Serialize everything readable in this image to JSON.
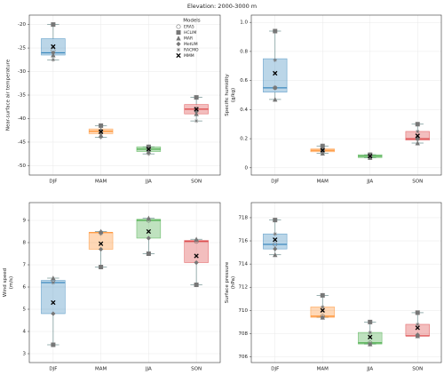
{
  "title": "Elevation: 2000-3000 m",
  "chart_data": [
    {
      "type": "box",
      "ylabel": [
        "Near-surface air temperature"
      ],
      "categories": [
        "DJF",
        "MAM",
        "JJA",
        "SON"
      ],
      "colors": [
        "#1f77b4",
        "#ff7f0e",
        "#2ca02c",
        "#d62728"
      ],
      "ylim": [
        -52,
        -18
      ],
      "yticks": [
        -20,
        -25,
        -30,
        -35,
        -40,
        -45,
        -50
      ],
      "grid": true,
      "boxes": [
        {
          "q1": -26.5,
          "median": -26,
          "q3": -23,
          "whislo": -27.5,
          "whishi": -20
        },
        {
          "q1": -43.2,
          "median": -42.7,
          "q3": -42.2,
          "whislo": -44,
          "whishi": -41.5
        },
        {
          "q1": -47,
          "median": -46.5,
          "q3": -46,
          "whislo": -47.5,
          "whishi": -46
        },
        {
          "q1": -39,
          "median": -38,
          "q3": -37,
          "whislo": -40.5,
          "whishi": -35.5
        }
      ],
      "legend_title": "Models",
      "legend": "upper right",
      "series": [
        {
          "name": "ERA5",
          "marker": "circle",
          "color": "#777777",
          "values": [
            -25.5,
            -42.8,
            -46.5,
            -38
          ]
        },
        {
          "name": "HCLIM",
          "marker": "square",
          "color": "#777777",
          "values": [
            -20,
            -41.5,
            -46,
            -35.5
          ]
        },
        {
          "name": "MAR",
          "marker": "triangle",
          "color": "#777777",
          "values": [
            -26.5,
            -43.5,
            -47,
            -39
          ]
        },
        {
          "name": "MetUM",
          "marker": "diamond",
          "color": "#777777",
          "values": [
            -26,
            -42.5,
            -46,
            -38.5
          ]
        },
        {
          "name": "RACMO",
          "marker": "star",
          "color": "#777777",
          "values": [
            -27.5,
            -44,
            -47.5,
            -40.5
          ]
        },
        {
          "name": "MMM",
          "marker": "x",
          "color": "#000000",
          "values": [
            -24.7,
            -42.8,
            -46.5,
            -38
          ]
        }
      ]
    },
    {
      "type": "box",
      "ylabel": [
        "Specific humidity",
        "(g/kg)"
      ],
      "categories": [
        "DJF",
        "MAM",
        "JJA",
        "SON"
      ],
      "colors": [
        "#1f77b4",
        "#ff7f0e",
        "#2ca02c",
        "#d62728"
      ],
      "ylim": [
        -0.05,
        1.05
      ],
      "yticks": [
        0,
        0.2,
        0.4,
        0.6,
        0.8,
        {
          "value": 1,
          "label": "1.0"
        }
      ],
      "grid": true,
      "boxes": [
        {
          "q1": 0.52,
          "median": 0.55,
          "q3": 0.75,
          "whislo": 0.47,
          "whishi": 0.94
        },
        {
          "q1": 0.11,
          "median": 0.12,
          "q3": 0.13,
          "whislo": 0.1,
          "whishi": 0.15
        },
        {
          "q1": 0.07,
          "median": 0.08,
          "q3": 0.09,
          "whislo": 0.07,
          "whishi": 0.09
        },
        {
          "q1": 0.19,
          "median": 0.2,
          "q3": 0.25,
          "whislo": 0.17,
          "whishi": 0.3
        }
      ],
      "series": [
        {
          "marker": "circle",
          "color": "#777777",
          "values": [
            0.55,
            0.12,
            0.08,
            0.2
          ]
        },
        {
          "marker": "square",
          "color": "#777777",
          "values": [
            0.94,
            0.15,
            0.09,
            0.3
          ]
        },
        {
          "marker": "triangle",
          "color": "#777777",
          "values": [
            0.47,
            0.1,
            0.07,
            0.17
          ]
        },
        {
          "marker": "diamond",
          "color": "#777777",
          "values": [
            0.55,
            0.12,
            0.08,
            0.2
          ]
        },
        {
          "marker": "star",
          "color": "#777777",
          "values": [
            0.74,
            0.13,
            0.09,
            0.25
          ]
        },
        {
          "marker": "x",
          "color": "#000000",
          "values": [
            0.65,
            0.12,
            0.08,
            0.22
          ]
        }
      ]
    },
    {
      "type": "box",
      "ylabel": [
        "Wind speed",
        "(m/s)"
      ],
      "categories": [
        "DJF",
        "MAM",
        "JJA",
        "SON"
      ],
      "colors": [
        "#1f77b4",
        "#ff7f0e",
        "#2ca02c",
        "#d62728"
      ],
      "ylim": [
        2.6,
        9.8
      ],
      "yticks": [
        3,
        4,
        5,
        6,
        7,
        8,
        9
      ],
      "grid": true,
      "boxes": [
        {
          "q1": 4.8,
          "median": 6.2,
          "q3": 6.3,
          "whislo": 3.4,
          "whishi": 6.4
        },
        {
          "q1": 7.7,
          "median": 8.45,
          "q3": 8.45,
          "whislo": 6.9,
          "whishi": 8.5
        },
        {
          "q1": 8.2,
          "median": 9.0,
          "q3": 9.05,
          "whislo": 7.5,
          "whishi": 9.1
        },
        {
          "q1": 7.1,
          "median": 8.05,
          "q3": 8.1,
          "whislo": 6.1,
          "whishi": 8.15
        }
      ],
      "series": [
        {
          "marker": "circle",
          "color": "#777777",
          "values": [
            6.3,
            8.45,
            9.0,
            8.05
          ]
        },
        {
          "marker": "square",
          "color": "#777777",
          "values": [
            3.4,
            6.9,
            7.5,
            6.1
          ]
        },
        {
          "marker": "triangle",
          "color": "#777777",
          "values": [
            6.4,
            8.5,
            9.1,
            8.15
          ]
        },
        {
          "marker": "diamond",
          "color": "#777777",
          "values": [
            4.8,
            7.7,
            8.2,
            7.1
          ]
        },
        {
          "marker": "star",
          "color": "#777777",
          "values": [
            6.2,
            8.4,
            9.05,
            8.1
          ]
        },
        {
          "marker": "x",
          "color": "#000000",
          "values": [
            5.3,
            7.95,
            8.5,
            7.4
          ]
        }
      ]
    },
    {
      "type": "box",
      "ylabel": [
        "Surface pressure",
        "(hPa)"
      ],
      "categories": [
        "DJF",
        "MAM",
        "JJA",
        "SON"
      ],
      "colors": [
        "#1f77b4",
        "#ff7f0e",
        "#2ca02c",
        "#d62728"
      ],
      "ylim": [
        705.5,
        719.3
      ],
      "yticks": [
        706,
        708,
        710,
        712,
        714,
        716,
        718
      ],
      "grid": true,
      "boxes": [
        {
          "q1": 715.3,
          "median": 715.7,
          "q3": 716.6,
          "whislo": 714.8,
          "whishi": 717.8
        },
        {
          "q1": 709.4,
          "median": 709.5,
          "q3": 710.3,
          "whislo": 709.4,
          "whishi": 711.3
        },
        {
          "q1": 707.1,
          "median": 707.2,
          "q3": 708.1,
          "whislo": 707.1,
          "whishi": 709
        },
        {
          "q1": 707.8,
          "median": 707.8,
          "q3": 708.8,
          "whislo": 707.8,
          "whishi": 709.8
        }
      ],
      "series": [
        {
          "marker": "circle",
          "color": "#777777",
          "values": [
            715.7,
            709.5,
            707.2,
            707.8
          ]
        },
        {
          "marker": "square",
          "color": "#777777",
          "values": [
            717.8,
            711.3,
            709,
            709.8
          ]
        },
        {
          "marker": "triangle",
          "color": "#777777",
          "values": [
            714.8,
            709.4,
            707.1,
            707.8
          ]
        },
        {
          "marker": "diamond",
          "color": "#777777",
          "values": [
            715.3,
            709.4,
            707.1,
            707.9
          ]
        },
        {
          "marker": "star",
          "color": "#777777",
          "values": [
            716.6,
            710.3,
            708.1,
            708.8
          ]
        },
        {
          "marker": "x",
          "color": "#000000",
          "values": [
            716.1,
            710,
            707.7,
            708.5
          ]
        }
      ]
    }
  ]
}
